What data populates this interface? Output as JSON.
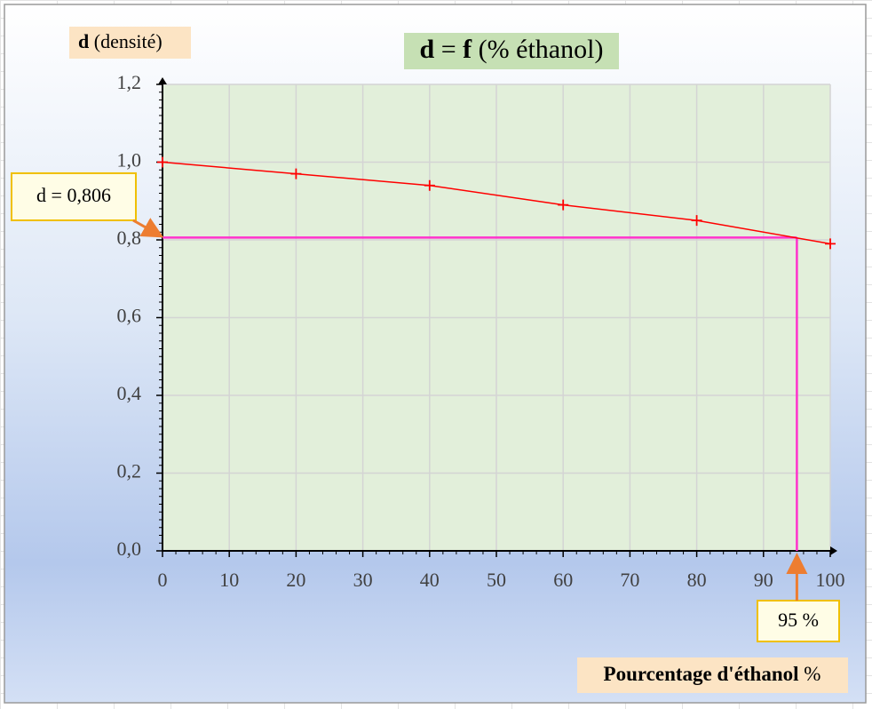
{
  "chart_data": {
    "type": "line",
    "title": [
      {
        "text": "d",
        "bold": true
      },
      {
        "text": " = ",
        "bold": false
      },
      {
        "text": "f",
        "bold": true
      },
      {
        "text": " (% éthanol)",
        "bold": false
      }
    ],
    "y_label": [
      {
        "text": "d",
        "bold": true
      },
      {
        "text": " (densité)",
        "bold": false
      }
    ],
    "x_label": [
      {
        "text": "Pourcentage d'éthanol",
        "bold": true
      },
      {
        "text": " %",
        "bold": false
      }
    ],
    "x": [
      0,
      20,
      40,
      60,
      80,
      100
    ],
    "series": [
      {
        "name": "d",
        "color": "#ff0000",
        "values": [
          1.0,
          0.97,
          0.94,
          0.89,
          0.85,
          0.79
        ]
      }
    ],
    "xlim": [
      0,
      100
    ],
    "xticks": [
      0,
      10,
      20,
      30,
      40,
      50,
      60,
      70,
      80,
      90,
      100
    ],
    "ylim": [
      0,
      1.2
    ],
    "yticks": [
      {
        "value": 0,
        "label": "0,0"
      },
      {
        "value": 0.2,
        "label": "0,2"
      },
      {
        "value": 0.4,
        "label": "0,4"
      },
      {
        "value": 0.6,
        "label": "0,6"
      },
      {
        "value": 0.8,
        "label": "0,8"
      },
      {
        "value": 1.0,
        "label": "1,0"
      },
      {
        "value": 1.2,
        "label": "1,2"
      }
    ],
    "grid": true,
    "reference": {
      "color": "#ff33cc",
      "x": {
        "value": 95,
        "label": "95 %"
      },
      "y": {
        "value": 0.806,
        "label": "d = 0,806"
      }
    }
  }
}
